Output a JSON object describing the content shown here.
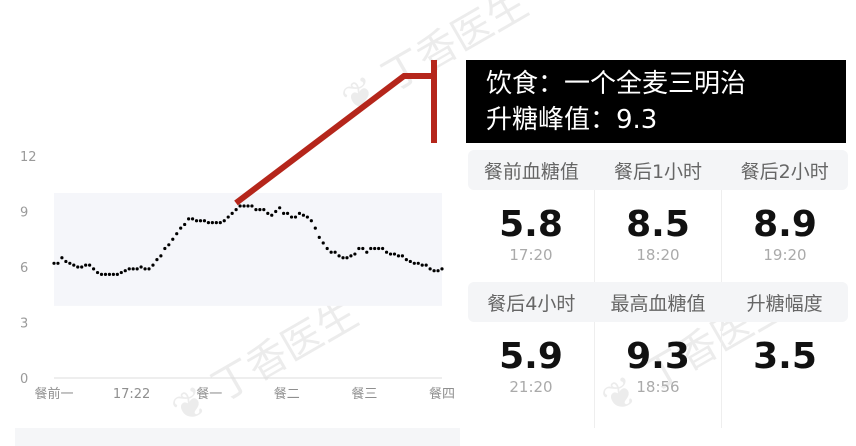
{
  "info": {
    "line1": "饮食：一个全麦三明治",
    "line2": "升糖峰值：9.3"
  },
  "watermark": "丁香医生",
  "colors": {
    "annotation": "#b5261b",
    "band": "#f5f6fa",
    "points": "#000000",
    "info_bg": "#000000"
  },
  "stats": {
    "row1": {
      "headers": [
        "餐前血糖值",
        "餐后1小时",
        "餐后2小时"
      ],
      "values": [
        {
          "value": "5.8",
          "time": "17:20"
        },
        {
          "value": "8.5",
          "time": "18:20"
        },
        {
          "value": "8.9",
          "time": "19:20"
        }
      ]
    },
    "row2": {
      "headers": [
        "餐后4小时",
        "最高血糖值",
        "升糖幅度"
      ],
      "values": [
        {
          "value": "5.9",
          "time": "21:20"
        },
        {
          "value": "9.3",
          "time": "18:56"
        },
        {
          "value": "3.5",
          "time": ""
        }
      ]
    }
  },
  "chart_data": {
    "type": "scatter",
    "ylim": [
      0,
      12
    ],
    "yticks": [
      "0",
      "3",
      "6",
      "9",
      "12"
    ],
    "xtick_labels": [
      "餐前一",
      "17:22",
      "餐一",
      "餐二",
      "餐三",
      "餐四"
    ],
    "target_band": [
      3.9,
      10
    ],
    "grid": false,
    "values": [
      6.2,
      6.2,
      6.5,
      6.3,
      6.2,
      6.1,
      6.0,
      6.0,
      6.1,
      6.1,
      5.9,
      5.7,
      5.6,
      5.6,
      5.6,
      5.6,
      5.6,
      5.7,
      5.8,
      5.9,
      5.9,
      5.9,
      6.0,
      5.9,
      5.9,
      6.1,
      6.4,
      6.6,
      7.0,
      7.2,
      7.5,
      7.8,
      8.1,
      8.3,
      8.6,
      8.6,
      8.5,
      8.5,
      8.5,
      8.4,
      8.4,
      8.4,
      8.4,
      8.5,
      8.7,
      8.9,
      9.1,
      9.3,
      9.3,
      9.3,
      9.3,
      9.1,
      9.1,
      9.1,
      8.9,
      8.8,
      9.0,
      9.2,
      8.9,
      8.9,
      8.7,
      8.7,
      8.9,
      8.8,
      8.7,
      8.5,
      8.1,
      7.6,
      7.3,
      7.0,
      6.8,
      6.8,
      6.6,
      6.5,
      6.5,
      6.6,
      6.7,
      7.0,
      7.0,
      6.8,
      7.0,
      7.0,
      7.0,
      7.0,
      6.8,
      6.7,
      6.7,
      6.6,
      6.6,
      6.4,
      6.3,
      6.2,
      6.2,
      6.1,
      6.1,
      5.9,
      5.8,
      5.8,
      5.9
    ]
  }
}
